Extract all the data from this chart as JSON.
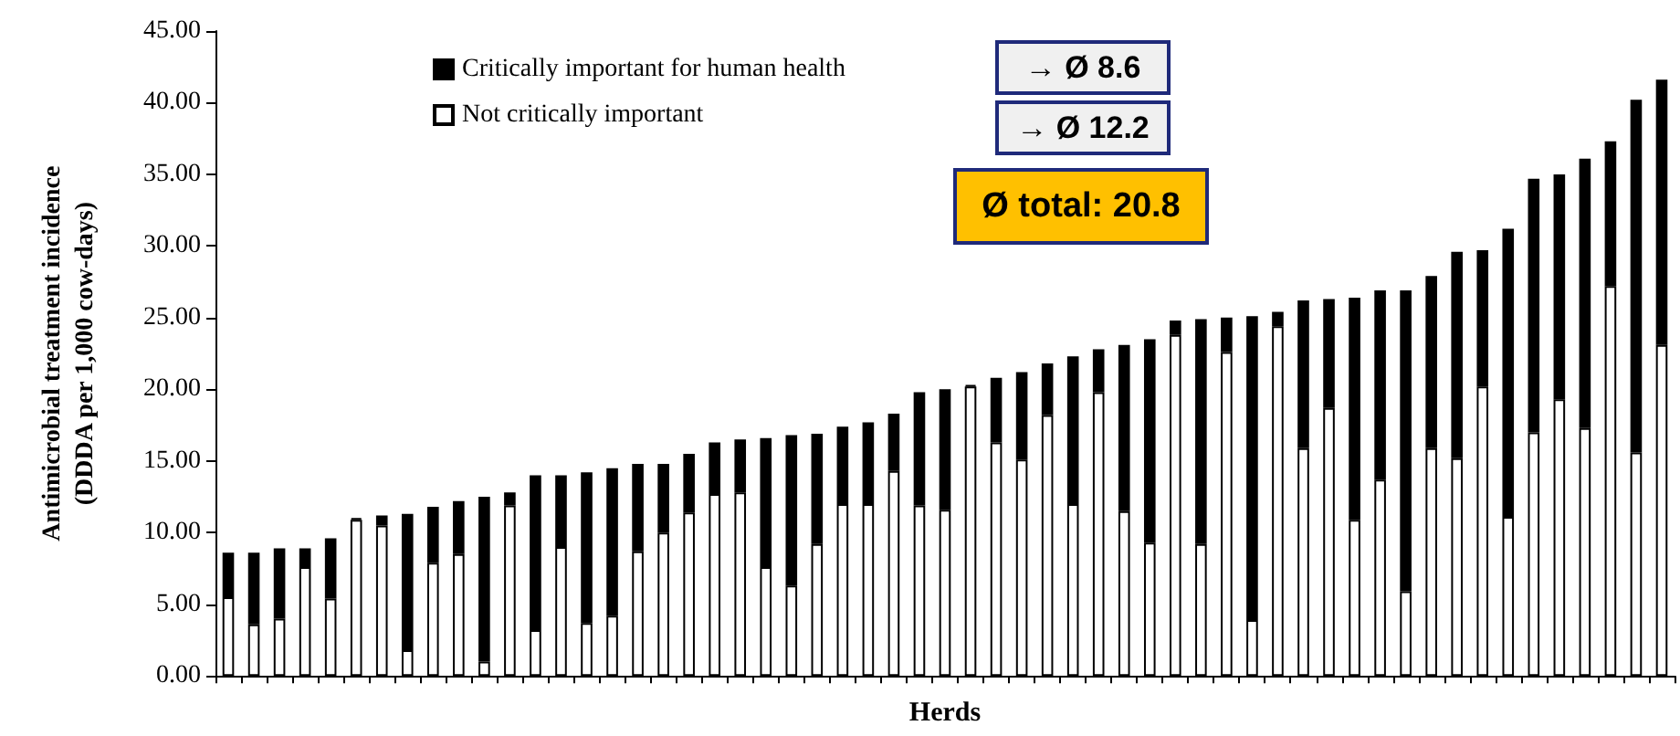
{
  "chart_data": {
    "type": "bar",
    "stacked": true,
    "xlabel": "Herds",
    "ylabel": "Antimicrobial treatment incidence (DDDA per 1,000 cow-days)",
    "categories": [
      null,
      null,
      null,
      null,
      null,
      null,
      null,
      null,
      null,
      null,
      null,
      null,
      null,
      null,
      null,
      null,
      null,
      null,
      null,
      null,
      null,
      null,
      null,
      null,
      null,
      null,
      null,
      null,
      null,
      null,
      null,
      null,
      null,
      null,
      null,
      null,
      null,
      null,
      null,
      null,
      null,
      null,
      null,
      null,
      null,
      null,
      null,
      null,
      null,
      null,
      null,
      null,
      null,
      null,
      null,
      null,
      null
    ],
    "series": [
      {
        "name": "Not critically important",
        "color": "#ffffff",
        "values": [
          5.5,
          3.6,
          4.0,
          7.6,
          5.4,
          10.9,
          10.5,
          1.8,
          7.9,
          8.5,
          1.0,
          11.9,
          3.2,
          9.0,
          3.7,
          4.2,
          8.7,
          10.0,
          11.4,
          12.7,
          12.8,
          7.6,
          6.3,
          9.2,
          12.0,
          12.0,
          14.3,
          11.9,
          11.6,
          20.2,
          16.3,
          15.1,
          18.2,
          12.0,
          19.8,
          11.5,
          9.3,
          23.8,
          9.2,
          22.6,
          3.9,
          24.4,
          15.9,
          18.7,
          10.9,
          13.7,
          5.9,
          15.9,
          15.2,
          20.2,
          11.1,
          17.0,
          19.3,
          17.3,
          27.2,
          15.6,
          23.1
        ]
      },
      {
        "name": "Critically important for human health",
        "color": "#000000",
        "values": [
          3.1,
          5.0,
          4.9,
          1.3,
          4.2,
          0.1,
          0.7,
          9.5,
          3.9,
          3.7,
          11.5,
          0.9,
          10.8,
          5.0,
          10.5,
          10.3,
          6.1,
          4.8,
          4.1,
          3.6,
          3.7,
          9.0,
          10.5,
          7.7,
          5.4,
          5.7,
          4.0,
          7.9,
          8.4,
          0.1,
          4.5,
          6.1,
          3.6,
          10.3,
          3.0,
          11.6,
          14.2,
          1.0,
          15.7,
          2.4,
          21.2,
          1.0,
          10.3,
          7.6,
          15.5,
          13.2,
          21.0,
          12.0,
          14.4,
          9.5,
          20.1,
          17.7,
          15.7,
          18.8,
          10.1,
          24.6,
          18.5
        ]
      }
    ],
    "ylim": [
      0,
      45
    ],
    "yticks": [
      {
        "value": 0,
        "label": "0.00"
      },
      {
        "value": 5,
        "label": "5.00"
      },
      {
        "value": 10,
        "label": "10.00"
      },
      {
        "value": 15,
        "label": "15.00"
      },
      {
        "value": 20,
        "label": "20.00"
      },
      {
        "value": 25,
        "label": "25.00"
      },
      {
        "value": 30,
        "label": "30.00"
      },
      {
        "value": 35,
        "label": "35.00"
      },
      {
        "value": 40,
        "label": "40.00"
      },
      {
        "value": 45,
        "label": "45.00"
      }
    ],
    "grid": false,
    "legend": "top left",
    "annotations": [
      "→ Ø 8.6",
      "→ Ø 12.2",
      "Ø total: 20.8"
    ]
  }
}
